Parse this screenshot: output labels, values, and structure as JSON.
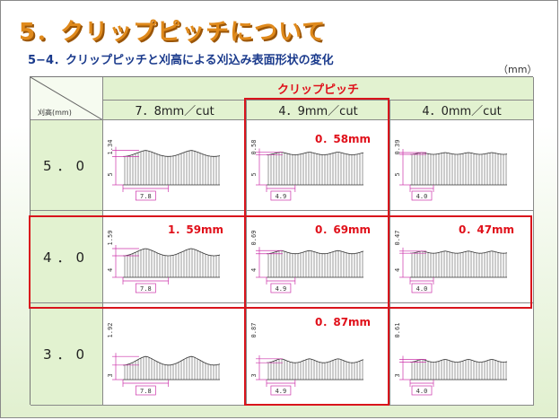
{
  "title": "5．クリップピッチについて",
  "subtitle": "5−4．クリップピッチと刈高による刈込み表面形状の変化",
  "unit": "（mm）",
  "table": {
    "corner_label": "刈高(mm)",
    "column_group": "クリップピッチ",
    "columns": [
      "7．8mm／cut",
      "4．9mm／cut",
      "4．0mm／cut"
    ],
    "rows": [
      {
        "height": "5．0",
        "cells": [
          {
            "pitch": "7.8",
            "height": "5",
            "wave": "1.34",
            "callout": ""
          },
          {
            "pitch": "4.9",
            "height": "5",
            "wave": "0.58",
            "callout": "0．58mm"
          },
          {
            "pitch": "4.0",
            "height": "5",
            "wave": "0.39",
            "callout": ""
          }
        ]
      },
      {
        "height": "4．0",
        "cells": [
          {
            "pitch": "7.8",
            "height": "4",
            "wave": "1.59",
            "callout": "1．59mm"
          },
          {
            "pitch": "4.9",
            "height": "4",
            "wave": "0.69",
            "callout": "0．69mm"
          },
          {
            "pitch": "4.0",
            "height": "4",
            "wave": "0.47",
            "callout": "0．47mm"
          }
        ]
      },
      {
        "height": "3．0",
        "cells": [
          {
            "pitch": "7.8",
            "height": "3",
            "wave": "1.92",
            "callout": ""
          },
          {
            "pitch": "4.9",
            "height": "3",
            "wave": "0.87",
            "callout": "0．87mm"
          },
          {
            "pitch": "4.0",
            "height": "3",
            "wave": "0.61",
            "callout": ""
          }
        ]
      }
    ]
  },
  "colors": {
    "title": "#e08a1c",
    "subtitle": "#1a3a8c",
    "header_fill": "#e2f2d0",
    "highlight": "#d9141c",
    "dimension": "#cc33aa"
  }
}
